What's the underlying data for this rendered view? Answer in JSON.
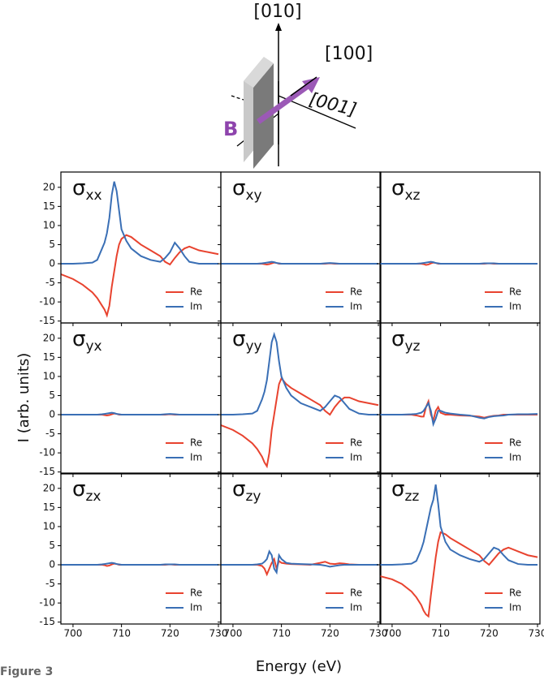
{
  "figure_label": "Figure 3",
  "diagram": {
    "labels": [
      "[010]",
      "[100]",
      "[001]",
      "B"
    ]
  },
  "x_label": "Energy (eV)",
  "y_label": "I (arb. units)",
  "chart_data": [
    {
      "type": "line",
      "title": "σ",
      "subscript": "xx",
      "legend": "lower right",
      "xlim": [
        697.5,
        730.5
      ],
      "ylim": [
        -15.5,
        24
      ],
      "xticks": [
        700,
        710,
        720,
        730
      ],
      "yticks": [
        -15,
        -10,
        -5,
        0,
        5,
        10,
        15,
        20
      ],
      "x": [
        697,
        700,
        702,
        704,
        705,
        706,
        706.5,
        707,
        707.5,
        708,
        708.5,
        709,
        709.5,
        710,
        711,
        712,
        714,
        716,
        718,
        719,
        720,
        721,
        722,
        723,
        724,
        726,
        728,
        730
      ],
      "series": [
        {
          "name": "Re",
          "color": "#e8432f",
          "values": [
            -2.5,
            -4,
            -5.5,
            -7.5,
            -9,
            -11,
            -12,
            -13.5,
            -11,
            -6,
            -2,
            2,
            5,
            6.5,
            7.5,
            7,
            5,
            3.5,
            2,
            0.5,
            -0.2,
            1.5,
            3,
            4,
            4.5,
            3.5,
            3,
            2.5
          ]
        },
        {
          "name": "Im",
          "color": "#3a6fb5",
          "values": [
            0,
            0,
            0.1,
            0.3,
            1,
            4,
            5.5,
            8,
            12,
            18,
            21.5,
            19,
            14,
            9,
            6,
            4,
            2,
            1,
            0.5,
            1.5,
            3,
            5.5,
            4,
            2,
            0.5,
            0,
            0,
            0
          ]
        }
      ]
    },
    {
      "type": "line",
      "title": "σ",
      "subscript": "xy",
      "legend": "lower right",
      "xlim": [
        697.5,
        730.5
      ],
      "ylim": [
        -15.5,
        24
      ],
      "xticks": [
        700,
        710,
        720,
        730
      ],
      "yticks": [
        -15,
        -10,
        -5,
        0,
        5,
        10,
        15,
        20
      ],
      "x": [
        697,
        700,
        702,
        704,
        705,
        706,
        706.5,
        707,
        707.5,
        708,
        708.5,
        709,
        709.5,
        710,
        711,
        712,
        714,
        716,
        718,
        719,
        720,
        721,
        722,
        723,
        724,
        726,
        728,
        730
      ],
      "series": [
        {
          "name": "Re",
          "color": "#e8432f",
          "values": [
            0,
            0,
            0,
            0,
            0,
            0,
            -0.1,
            -0.2,
            -0.1,
            0.1,
            0.3,
            0.2,
            0,
            0,
            0,
            0,
            0,
            0,
            0,
            0,
            0.1,
            0,
            0,
            0,
            0,
            0,
            0,
            0
          ]
        },
        {
          "name": "Im",
          "color": "#3a6fb5",
          "values": [
            0,
            0,
            0,
            0,
            0,
            0.1,
            0.2,
            0.3,
            0.4,
            0.5,
            0.4,
            0.2,
            0.1,
            0,
            0,
            0,
            0,
            0,
            0,
            0.1,
            0.2,
            0.1,
            0,
            0,
            0,
            0,
            0,
            0
          ]
        }
      ]
    },
    {
      "type": "line",
      "title": "σ",
      "subscript": "xz",
      "legend": "lower right",
      "xlim": [
        697.5,
        730.5
      ],
      "ylim": [
        -15.5,
        24
      ],
      "xticks": [
        700,
        710,
        720,
        730
      ],
      "yticks": [
        -15,
        -10,
        -5,
        0,
        5,
        10,
        15,
        20
      ],
      "x": [
        697,
        700,
        702,
        704,
        705,
        706,
        706.5,
        707,
        707.5,
        708,
        708.5,
        709,
        709.5,
        710,
        711,
        712,
        714,
        716,
        718,
        719,
        720,
        721,
        722,
        723,
        724,
        726,
        728,
        730
      ],
      "series": [
        {
          "name": "Re",
          "color": "#e8432f",
          "values": [
            0,
            0,
            0,
            0,
            0,
            0,
            -0.1,
            -0.3,
            -0.2,
            0.1,
            0.3,
            0.2,
            0,
            0,
            0,
            0,
            0,
            0,
            0,
            0,
            0.1,
            0,
            0,
            0,
            0,
            0,
            0,
            0
          ]
        },
        {
          "name": "Im",
          "color": "#3a6fb5",
          "values": [
            0,
            0,
            0,
            0,
            0,
            0.1,
            0.2,
            0.3,
            0.4,
            0.5,
            0.4,
            0.2,
            0.1,
            0,
            0,
            0,
            0,
            0,
            0,
            0.1,
            0.1,
            0.1,
            0,
            0,
            0,
            0,
            0,
            0
          ]
        }
      ]
    },
    {
      "type": "line",
      "title": "σ",
      "subscript": "yx",
      "legend": "lower right",
      "xlim": [
        697.5,
        730.5
      ],
      "ylim": [
        -15.5,
        24
      ],
      "xticks": [
        700,
        710,
        720,
        730
      ],
      "yticks": [
        -15,
        -10,
        -5,
        0,
        5,
        10,
        15,
        20
      ],
      "x": [
        697,
        700,
        702,
        704,
        705,
        706,
        706.5,
        707,
        707.5,
        708,
        708.5,
        709,
        709.5,
        710,
        711,
        712,
        714,
        716,
        718,
        719,
        720,
        721,
        722,
        723,
        724,
        726,
        728,
        730
      ],
      "series": [
        {
          "name": "Re",
          "color": "#e8432f",
          "values": [
            0,
            0,
            0,
            0,
            0,
            0,
            -0.1,
            -0.2,
            -0.1,
            0.1,
            0.3,
            0.2,
            0,
            0,
            0,
            0,
            0,
            0,
            0,
            0,
            0.1,
            0,
            0,
            0,
            0,
            0,
            0,
            0
          ]
        },
        {
          "name": "Im",
          "color": "#3a6fb5",
          "values": [
            0,
            0,
            0,
            0,
            0,
            0.1,
            0.2,
            0.3,
            0.4,
            0.5,
            0.4,
            0.2,
            0.1,
            0,
            0,
            0,
            0,
            0,
            0,
            0.1,
            0.2,
            0.1,
            0,
            0,
            0,
            0,
            0,
            0
          ]
        }
      ]
    },
    {
      "type": "line",
      "title": "σ",
      "subscript": "yy",
      "legend": "lower right",
      "xlim": [
        697.5,
        730.5
      ],
      "ylim": [
        -15.5,
        24
      ],
      "xticks": [
        700,
        710,
        720,
        730
      ],
      "yticks": [
        -15,
        -10,
        -5,
        0,
        5,
        10,
        15,
        20
      ],
      "x": [
        697,
        700,
        702,
        704,
        705,
        706,
        706.5,
        707,
        707.5,
        708,
        708.5,
        709,
        709.5,
        710,
        711,
        712,
        714,
        716,
        718,
        719,
        720,
        721,
        722,
        723,
        724,
        726,
        728,
        730
      ],
      "series": [
        {
          "name": "Re",
          "color": "#e8432f",
          "values": [
            -2.5,
            -4,
            -5.5,
            -7.5,
            -9,
            -11,
            -12.5,
            -13.5,
            -10,
            -4,
            0,
            4,
            8,
            9.5,
            8,
            7,
            5.5,
            4,
            2.5,
            1,
            0,
            2,
            3.5,
            4.5,
            4.5,
            3.5,
            3,
            2.5
          ]
        },
        {
          "name": "Im",
          "color": "#3a6fb5",
          "values": [
            0,
            0,
            0.1,
            0.3,
            1,
            4,
            6,
            9,
            14,
            19,
            21,
            19,
            14,
            10,
            7,
            5,
            3,
            2,
            1,
            2,
            3.5,
            5,
            4.5,
            3,
            1.5,
            0.3,
            0,
            0
          ]
        }
      ]
    },
    {
      "type": "line",
      "title": "σ",
      "subscript": "yz",
      "legend": "lower right",
      "xlim": [
        697.5,
        730.5
      ],
      "ylim": [
        -15.5,
        24
      ],
      "xticks": [
        700,
        710,
        720,
        730
      ],
      "yticks": [
        -15,
        -10,
        -5,
        0,
        5,
        10,
        15,
        20
      ],
      "x": [
        697,
        700,
        702,
        704,
        705,
        706,
        706.5,
        707,
        707.5,
        708,
        708.5,
        709,
        709.5,
        710,
        711,
        712,
        714,
        716,
        718,
        719,
        720,
        721,
        722,
        723,
        724,
        726,
        728,
        730
      ],
      "series": [
        {
          "name": "Re",
          "color": "#e8432f",
          "values": [
            0,
            0,
            0,
            0,
            -0.2,
            -0.5,
            -0.5,
            2,
            3.5,
            0,
            -1.5,
            1,
            2,
            0.5,
            0,
            0,
            -0.2,
            -0.3,
            -0.5,
            -0.8,
            -0.5,
            -0.3,
            -0.2,
            0,
            0,
            0,
            0,
            0
          ]
        },
        {
          "name": "Im",
          "color": "#3a6fb5",
          "values": [
            0,
            0,
            0,
            0.1,
            0.2,
            0.5,
            1,
            2,
            3,
            1,
            -2.5,
            -1,
            1,
            1,
            0.5,
            0.3,
            0,
            -0.2,
            -0.8,
            -1,
            -0.6,
            -0.4,
            -0.3,
            -0.2,
            0,
            0.1,
            0.1,
            0.2
          ]
        }
      ]
    },
    {
      "type": "line",
      "title": "σ",
      "subscript": "zx",
      "legend": "lower right",
      "xlim": [
        697.5,
        730.5
      ],
      "ylim": [
        -15.5,
        24
      ],
      "xticks": [
        700,
        710,
        720,
        730
      ],
      "yticks": [
        -15,
        -10,
        -5,
        0,
        5,
        10,
        15,
        20
      ],
      "x": [
        697,
        700,
        702,
        704,
        705,
        706,
        706.5,
        707,
        707.5,
        708,
        708.5,
        709,
        709.5,
        710,
        711,
        712,
        714,
        716,
        718,
        719,
        720,
        721,
        722,
        723,
        724,
        726,
        728,
        730
      ],
      "series": [
        {
          "name": "Re",
          "color": "#e8432f",
          "values": [
            0,
            0,
            0,
            0,
            0,
            0,
            -0.1,
            -0.3,
            -0.2,
            0.1,
            0.3,
            0.2,
            0,
            0,
            0,
            0,
            0,
            0,
            0,
            0,
            0.1,
            0,
            0,
            0,
            0,
            0,
            0,
            0
          ]
        },
        {
          "name": "Im",
          "color": "#3a6fb5",
          "values": [
            0,
            0,
            0,
            0,
            0,
            0.1,
            0.2,
            0.3,
            0.4,
            0.5,
            0.4,
            0.2,
            0.1,
            0,
            0,
            0,
            0,
            0,
            0,
            0.1,
            0.1,
            0.1,
            0,
            0,
            0,
            0,
            0,
            0
          ]
        }
      ]
    },
    {
      "type": "line",
      "title": "σ",
      "subscript": "zy",
      "legend": "lower right",
      "xlim": [
        697.5,
        730.5
      ],
      "ylim": [
        -15.5,
        24
      ],
      "xticks": [
        700,
        710,
        720,
        730
      ],
      "yticks": [
        -15,
        -10,
        -5,
        0,
        5,
        10,
        15,
        20
      ],
      "x": [
        697,
        700,
        702,
        704,
        705,
        706,
        706.5,
        707,
        707.5,
        708,
        708.5,
        709,
        709.5,
        710,
        711,
        712,
        714,
        716,
        718,
        719,
        720,
        721,
        722,
        723,
        724,
        726,
        728,
        730
      ],
      "series": [
        {
          "name": "Re",
          "color": "#e8432f",
          "values": [
            0,
            0,
            0,
            0,
            0,
            -0.3,
            -1,
            -2.5,
            -1,
            0.5,
            1.5,
            -1,
            1,
            0.5,
            0.3,
            0.2,
            0.1,
            0,
            0.5,
            0.8,
            0.3,
            0.2,
            0.4,
            0.3,
            0.1,
            0,
            0,
            0
          ]
        },
        {
          "name": "Im",
          "color": "#3a6fb5",
          "values": [
            0,
            0,
            0,
            0,
            0.1,
            0.3,
            0.8,
            1.5,
            3.5,
            2.5,
            -1,
            -2,
            2.5,
            1.5,
            0.5,
            0.3,
            0.2,
            0.1,
            0,
            -0.2,
            -0.5,
            -0.3,
            -0.1,
            0,
            0,
            0,
            0,
            0
          ]
        }
      ]
    },
    {
      "type": "line",
      "title": "σ",
      "subscript": "zz",
      "legend": "lower right",
      "xlim": [
        697.5,
        730.5
      ],
      "ylim": [
        -15.5,
        24
      ],
      "xticks": [
        700,
        710,
        720,
        730
      ],
      "yticks": [
        -15,
        -10,
        -5,
        0,
        5,
        10,
        15,
        20
      ],
      "x": [
        697,
        700,
        702,
        704,
        705,
        706,
        706.5,
        707,
        707.5,
        708,
        708.5,
        709,
        709.5,
        710,
        711,
        712,
        714,
        716,
        718,
        719,
        720,
        721,
        722,
        723,
        724,
        726,
        728,
        730
      ],
      "series": [
        {
          "name": "Re",
          "color": "#e8432f",
          "values": [
            -2.8,
            -3.8,
            -5,
            -7,
            -8.5,
            -10.5,
            -12,
            -13,
            -13.5,
            -8,
            -3,
            2,
            6,
            8.5,
            8,
            7,
            5.5,
            4,
            2.5,
            1,
            0,
            1.5,
            3,
            4,
            4.5,
            3.5,
            2.5,
            2
          ]
        },
        {
          "name": "Im",
          "color": "#3a6fb5",
          "values": [
            0,
            0,
            0.1,
            0.3,
            1,
            4,
            6,
            9,
            12,
            15,
            17,
            21,
            16,
            10,
            6,
            4,
            2.5,
            1.5,
            0.8,
            1.5,
            3,
            4.5,
            4,
            2.5,
            1.2,
            0.2,
            0,
            0
          ]
        }
      ]
    }
  ]
}
